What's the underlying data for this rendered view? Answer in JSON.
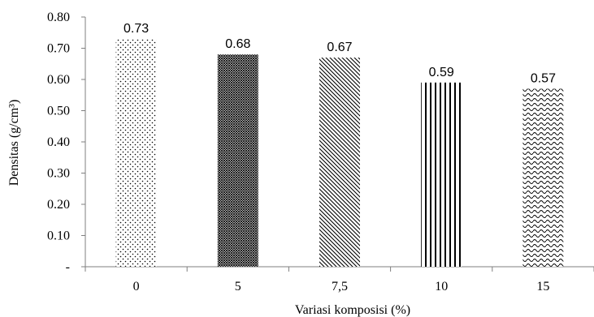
{
  "chart_data": {
    "type": "bar",
    "categories": [
      "0",
      "5",
      "7,5",
      "10",
      "15"
    ],
    "values": [
      0.73,
      0.68,
      0.67,
      0.59,
      0.57
    ],
    "data_labels": [
      "0.73",
      "0.68",
      "0.67",
      "0.59",
      "0.57"
    ],
    "patterns": [
      "dots",
      "dense-crosshatch",
      "diagonal-lines",
      "vertical-lines",
      "wave"
    ],
    "xlabel": "Variasi komposisi  (%)",
    "ylabel": "Densitas (g/cm³)",
    "ylim": [
      0,
      0.8
    ],
    "yticks": [
      0,
      0.1,
      0.2,
      0.3,
      0.4,
      0.5,
      0.6,
      0.7,
      0.8
    ],
    "ytick_labels": [
      "-",
      "0.10",
      "0.20",
      "0.30",
      "0.40",
      "0.50",
      "0.60",
      "0.70",
      "0.80"
    ],
    "grid": false,
    "legend": "none",
    "bar_color": "#000000",
    "axis_color": "#7f7f7f"
  }
}
